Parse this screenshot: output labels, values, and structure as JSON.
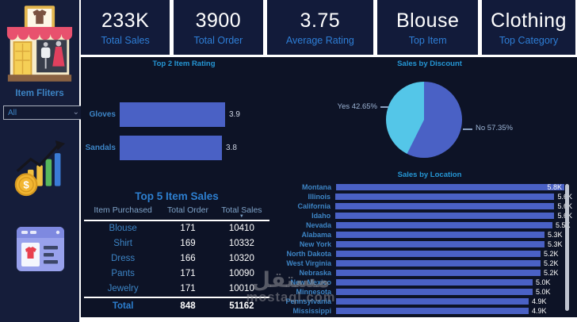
{
  "kpis": [
    {
      "value": "233K",
      "label": "Total Sales"
    },
    {
      "value": "3900",
      "label": "Total Order"
    },
    {
      "value": "3.75",
      "label": "Average Rating"
    },
    {
      "value": "Blouse",
      "label": "Top Item"
    },
    {
      "value": "Clothing",
      "label": "Top Category"
    }
  ],
  "sidebar": {
    "filter_title": "Item Fliters",
    "filter_value": "All"
  },
  "icons": {
    "chevron_down": "⌄",
    "sort_desc": "▼"
  },
  "colors": {
    "bar_blue": "#4a61c5",
    "pie_no": "#4a61c5",
    "pie_yes": "#54c6e8",
    "title_blue": "#2596d4",
    "label_blue": "#3d85c6",
    "kpi_label_blue": "#2e7ed6"
  },
  "chart_data": [
    {
      "id": "rating_chart",
      "type": "bar",
      "orientation": "horizontal",
      "title": "Top 2 Item Rating",
      "categories": [
        "Gloves",
        "Sandals"
      ],
      "values": [
        3.9,
        3.8
      ],
      "value_labels": [
        "3.9",
        "3.8"
      ],
      "xlim": [
        0,
        4
      ],
      "grid": false
    },
    {
      "id": "discount_pie",
      "type": "pie",
      "title": "Sales by Discount",
      "slices": [
        {
          "label": "No",
          "pct": 57.35,
          "display": "No 57.35%",
          "color": "#4a61c5"
        },
        {
          "label": "Yes",
          "pct": 42.65,
          "display": "Yes 42.65%",
          "color": "#54c6e8"
        }
      ],
      "legend_position": "callout-labels"
    },
    {
      "id": "location_chart",
      "type": "bar",
      "orientation": "horizontal",
      "title": "Sales by Location",
      "categories": [
        "Montana",
        "Illinois",
        "California",
        "Idaho",
        "Nevada",
        "Alabama",
        "New York",
        "North Dakota",
        "West Virginia",
        "Nebraska",
        "New Mexico",
        "Minnesota",
        "Pennsylvania",
        "Mississippi"
      ],
      "values": [
        5.8,
        5.6,
        5.6,
        5.6,
        5.5,
        5.3,
        5.3,
        5.2,
        5.2,
        5.2,
        5.0,
        5.0,
        4.9,
        4.9
      ],
      "value_labels": [
        "5.8K",
        "5.6K",
        "5.6K",
        "5.6K",
        "5.5K",
        "5.3K",
        "5.3K",
        "5.2K",
        "5.2K",
        "5.2K",
        "5.0K",
        "5.0K",
        "4.9K",
        "4.9K"
      ],
      "unit": "K",
      "grid": false,
      "scrollbar": true
    }
  ],
  "item_table": {
    "title": "Top 5 Item Sales",
    "columns": [
      "Item Purchased",
      "Total Order",
      "Total Sales"
    ],
    "sorted_column": "Total Sales",
    "sort_direction": "descending",
    "rows": [
      [
        "Blouse",
        "171",
        "10410"
      ],
      [
        "Shirt",
        "169",
        "10332"
      ],
      [
        "Dress",
        "166",
        "10320"
      ],
      [
        "Pants",
        "171",
        "10090"
      ],
      [
        "Jewelry",
        "171",
        "10010"
      ]
    ],
    "total_row": [
      "Total",
      "848",
      "51162"
    ]
  },
  "watermark": {
    "arabic": "مستقل",
    "latin": "mostaql.com"
  }
}
